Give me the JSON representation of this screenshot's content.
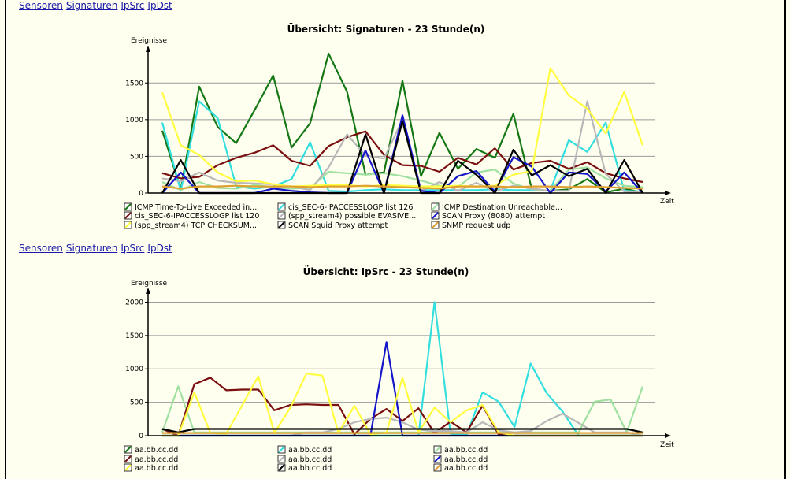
{
  "nav_top": {
    "links": [
      "Sensoren",
      "Signaturen",
      "IpSrc",
      "IpDst"
    ]
  },
  "nav_mid": {
    "links": [
      "Sensoren",
      "Signaturen",
      "IpSrc",
      "IpDst"
    ]
  },
  "chart_data": [
    {
      "type": "line",
      "title": "Übersicht: Signaturen - 23 Stunde(n)",
      "ylabel": "Ereignisse",
      "xlabel": "Zeit",
      "ylim": [
        0,
        1900
      ],
      "yticks": [
        0,
        500,
        1000,
        1500
      ],
      "grid": true,
      "legend_position": "bottom",
      "legend_columns": 3,
      "series": [
        {
          "name": "ICMP Time-To-Live Exceeded in...",
          "color": "#157815",
          "values": [
            850,
            50,
            1450,
            900,
            680,
            1130,
            1600,
            620,
            950,
            1900,
            1380,
            250,
            280,
            1530,
            230,
            820,
            330,
            600,
            480,
            1080,
            50,
            30,
            50,
            190,
            10,
            60,
            5
          ]
        },
        {
          "name": "cis_SEC-6-IPACCESSLOGP list 126",
          "color": "#33dede",
          "values": [
            960,
            30,
            1250,
            1020,
            90,
            60,
            90,
            190,
            690,
            30,
            20,
            40,
            50,
            40,
            40,
            40,
            40,
            40,
            50,
            40,
            40,
            30,
            720,
            560,
            960,
            30,
            20
          ]
        },
        {
          "name": "ICMP Destination Unreachable...",
          "color": "#a0e0a0",
          "values": [
            150,
            40,
            150,
            70,
            60,
            110,
            80,
            60,
            70,
            290,
            270,
            250,
            270,
            230,
            170,
            100,
            80,
            280,
            320,
            130,
            50,
            30,
            320,
            350,
            200,
            100,
            80
          ]
        },
        {
          "name": "cis_SEC-6-IPACCESSLOGP list 120",
          "color": "#7a1010",
          "values": [
            270,
            200,
            220,
            380,
            480,
            550,
            650,
            440,
            370,
            640,
            760,
            840,
            520,
            380,
            370,
            290,
            480,
            390,
            610,
            320,
            410,
            440,
            330,
            420,
            270,
            200,
            150
          ]
        },
        {
          "name": "(spp_stream4) possible EVASIVE...",
          "color": "#b8b8b8",
          "values": [
            200,
            160,
            280,
            170,
            140,
            130,
            120,
            90,
            40,
            350,
            800,
            510,
            470,
            1000,
            30,
            150,
            30,
            140,
            20,
            100,
            60,
            30,
            30,
            1250,
            260,
            20,
            10
          ]
        },
        {
          "name": "SCAN Proxy (8080) attempt",
          "color": "#1414c8",
          "values": [
            0,
            280,
            0,
            0,
            0,
            0,
            60,
            30,
            10,
            0,
            0,
            580,
            0,
            1060,
            30,
            0,
            230,
            300,
            20,
            490,
            360,
            0,
            280,
            260,
            20,
            280,
            0
          ]
        },
        {
          "name": "(spp_stream4) TCP CHECKSUM...",
          "color": "#ffff40",
          "values": [
            1370,
            650,
            520,
            280,
            160,
            170,
            120,
            90,
            100,
            110,
            110,
            90,
            110,
            100,
            90,
            90,
            100,
            90,
            100,
            250,
            300,
            1700,
            1330,
            1150,
            810,
            1380,
            650
          ]
        },
        {
          "name": "SCAN Squid Proxy attempt",
          "color": "#000000",
          "values": [
            0,
            450,
            0,
            0,
            0,
            0,
            0,
            0,
            0,
            0,
            0,
            800,
            0,
            980,
            0,
            0,
            440,
            250,
            0,
            590,
            240,
            380,
            230,
            330,
            0,
            450,
            0
          ]
        },
        {
          "name": "SNMP request udp",
          "color": "#e0a030",
          "values": [
            90,
            60,
            90,
            90,
            100,
            90,
            90,
            90,
            80,
            90,
            90,
            100,
            90,
            80,
            70,
            60,
            90,
            90,
            90,
            80,
            90,
            90,
            80,
            90,
            80,
            70,
            60
          ]
        }
      ]
    },
    {
      "type": "line",
      "title": "Übersicht: IpSrc - 23 Stunde(n)",
      "ylabel": "Ereignisse",
      "xlabel": "Zeit",
      "ylim": [
        0,
        2100
      ],
      "yticks": [
        0,
        500,
        1000,
        1500,
        2000
      ],
      "grid": true,
      "legend_position": "bottom",
      "legend_columns": 3,
      "series": [
        {
          "name": "aa.bb.cc.dd",
          "color": "#157815",
          "values": [
            0,
            0,
            0,
            0,
            0,
            0,
            0,
            0,
            0,
            0,
            0,
            0,
            0,
            0,
            0,
            0,
            0,
            0,
            0,
            0,
            0,
            0,
            0,
            0,
            0,
            0,
            0,
            0,
            0,
            0,
            0
          ]
        },
        {
          "name": "aa.bb.cc.dd",
          "color": "#33dede",
          "values": [
            0,
            0,
            0,
            0,
            0,
            0,
            0,
            0,
            0,
            0,
            0,
            0,
            0,
            0,
            0,
            0,
            0,
            2000,
            30,
            10,
            650,
            510,
            130,
            1080,
            640,
            360,
            0,
            0,
            0,
            0,
            0
          ]
        },
        {
          "name": "aa.bb.cc.dd",
          "color": "#a0e0a0",
          "values": [
            50,
            740,
            50,
            50,
            50,
            50,
            50,
            50,
            50,
            50,
            50,
            50,
            50,
            50,
            50,
            50,
            50,
            50,
            50,
            50,
            50,
            50,
            50,
            50,
            50,
            50,
            50,
            510,
            540,
            50,
            740
          ]
        },
        {
          "name": "aa.bb.cc.dd",
          "color": "#7a1010",
          "values": [
            100,
            0,
            770,
            870,
            680,
            690,
            690,
            380,
            460,
            470,
            460,
            460,
            20,
            250,
            400,
            220,
            410,
            40,
            210,
            50,
            450,
            20,
            0,
            0,
            0,
            0,
            0,
            0,
            0,
            0,
            0
          ]
        },
        {
          "name": "aa.bb.cc.dd",
          "color": "#b8b8b8",
          "values": [
            0,
            0,
            0,
            0,
            0,
            0,
            0,
            0,
            0,
            50,
            50,
            100,
            200,
            250,
            270,
            200,
            90,
            70,
            70,
            50,
            200,
            80,
            50,
            70,
            220,
            330,
            190,
            50,
            50,
            50,
            0
          ]
        },
        {
          "name": "aa.bb.cc.dd",
          "color": "#1414c8",
          "values": [
            0,
            0,
            0,
            0,
            0,
            0,
            0,
            0,
            0,
            0,
            0,
            0,
            0,
            0,
            1400,
            0,
            0,
            0,
            0,
            0,
            0,
            0,
            0,
            0,
            0,
            0,
            0,
            0,
            0,
            0,
            0
          ]
        },
        {
          "name": "aa.bb.cc.dd",
          "color": "#ffff40",
          "values": [
            0,
            0,
            650,
            40,
            30,
            460,
            890,
            40,
            420,
            930,
            900,
            40,
            450,
            20,
            50,
            870,
            50,
            420,
            200,
            380,
            460,
            50,
            0,
            0,
            0,
            0,
            0,
            0,
            0,
            0,
            0
          ]
        },
        {
          "name": "aa.bb.cc.dd",
          "color": "#000000",
          "values": [
            100,
            50,
            100,
            100,
            100,
            100,
            100,
            100,
            100,
            100,
            100,
            100,
            100,
            100,
            100,
            100,
            100,
            100,
            100,
            100,
            100,
            100,
            100,
            100,
            100,
            100,
            100,
            100,
            100,
            100,
            50
          ]
        },
        {
          "name": "aa.bb.cc.dd",
          "color": "#e0a030",
          "values": [
            40,
            40,
            40,
            40,
            40,
            40,
            40,
            40,
            40,
            40,
            40,
            40,
            40,
            40,
            40,
            40,
            40,
            40,
            40,
            40,
            40,
            40,
            40,
            40,
            40,
            40,
            40,
            40,
            40,
            40,
            40
          ]
        }
      ]
    }
  ]
}
